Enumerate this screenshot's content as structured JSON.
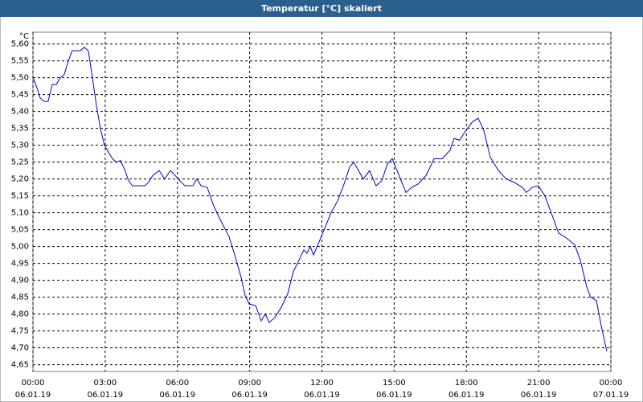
{
  "chart_data": {
    "type": "line",
    "title": "Temperatur [°C] skaliert",
    "y_label": "°C",
    "x": [
      0,
      0.17,
      0.3,
      0.47,
      0.63,
      0.8,
      0.97,
      1.13,
      1.3,
      1.47,
      1.63,
      1.97,
      2.13,
      2.3,
      2.47,
      2.63,
      2.8,
      2.97,
      3.13,
      3.3,
      3.47,
      3.63,
      3.8,
      3.97,
      4.13,
      4.64,
      4.8,
      4.97,
      5.24,
      5.47,
      5.71,
      5.91,
      6.04,
      6.31,
      6.64,
      6.81,
      6.98,
      7.24,
      7.48,
      7.81,
      8.14,
      8.38,
      8.64,
      8.81,
      8.98,
      9.25,
      9.48,
      9.65,
      9.81,
      10.05,
      10.31,
      10.58,
      10.81,
      11.05,
      11.25,
      11.38,
      11.52,
      11.65,
      11.92,
      12.15,
      12.38,
      12.65,
      12.92,
      13.15,
      13.32,
      13.48,
      13.72,
      13.98,
      14.25,
      14.49,
      14.72,
      14.92,
      15.15,
      15.49,
      15.72,
      15.99,
      16.32,
      16.66,
      16.99,
      17.32,
      17.49,
      17.72,
      17.99,
      18.26,
      18.49,
      18.72,
      18.99,
      19.33,
      19.66,
      19.99,
      20.33,
      20.49,
      20.73,
      20.99,
      21.26,
      21.6,
      21.83,
      22.16,
      22.5,
      22.73,
      23.0,
      23.16,
      23.4,
      23.6,
      23.83
    ],
    "values": [
      5.5,
      5.47,
      5.44,
      5.43,
      5.43,
      5.48,
      5.48,
      5.5,
      5.51,
      5.55,
      5.58,
      5.58,
      5.59,
      5.58,
      5.5,
      5.42,
      5.35,
      5.3,
      5.28,
      5.26,
      5.25,
      5.255,
      5.23,
      5.195,
      5.18,
      5.18,
      5.19,
      5.21,
      5.225,
      5.2,
      5.225,
      5.21,
      5.2,
      5.18,
      5.18,
      5.2,
      5.18,
      5.175,
      5.125,
      5.075,
      5.03,
      4.975,
      4.91,
      4.855,
      4.83,
      4.825,
      4.78,
      4.8,
      4.775,
      4.79,
      4.82,
      4.86,
      4.925,
      4.96,
      4.99,
      4.98,
      5.0,
      4.975,
      5.02,
      5.06,
      5.1,
      5.135,
      5.185,
      5.235,
      5.25,
      5.23,
      5.2,
      5.225,
      5.18,
      5.195,
      5.245,
      5.26,
      5.22,
      5.16,
      5.175,
      5.185,
      5.21,
      5.26,
      5.26,
      5.285,
      5.32,
      5.315,
      5.345,
      5.37,
      5.38,
      5.345,
      5.265,
      5.225,
      5.2,
      5.19,
      5.175,
      5.16,
      5.175,
      5.18,
      5.15,
      5.085,
      5.04,
      5.025,
      5.005,
      4.96,
      4.88,
      4.85,
      4.84,
      4.765,
      4.69
    ],
    "color": "#0000cc",
    "xlim": [
      0,
      24
    ],
    "xticks": [
      {
        "value": 0,
        "label": "00:00"
      },
      {
        "value": 3,
        "label": "03:00"
      },
      {
        "value": 6,
        "label": "06:00"
      },
      {
        "value": 9,
        "label": "09:00"
      },
      {
        "value": 12,
        "label": "12:00"
      },
      {
        "value": 15,
        "label": "15:00"
      },
      {
        "value": 18,
        "label": "18:00"
      },
      {
        "value": 21,
        "label": "21:00"
      },
      {
        "value": 24,
        "label": "00:00"
      }
    ],
    "xtick_dates": [
      "06.01.19",
      "06.01.19",
      "06.01.19",
      "06.01.19",
      "06.01.19",
      "06.01.19",
      "06.01.19",
      "06.01.19",
      "07.01.19"
    ],
    "ylim": [
      4.63,
      5.635
    ],
    "yticks": [
      {
        "value": 4.65,
        "label": "4,65"
      },
      {
        "value": 4.7,
        "label": "4,70"
      },
      {
        "value": 4.75,
        "label": "4,75"
      },
      {
        "value": 4.8,
        "label": "4,80"
      },
      {
        "value": 4.85,
        "label": "4,85"
      },
      {
        "value": 4.9,
        "label": "4,90"
      },
      {
        "value": 4.95,
        "label": "4,95"
      },
      {
        "value": 5.0,
        "label": "5,00"
      },
      {
        "value": 5.05,
        "label": "5,05"
      },
      {
        "value": 5.1,
        "label": "5,10"
      },
      {
        "value": 5.15,
        "label": "5,15"
      },
      {
        "value": 5.2,
        "label": "5,20"
      },
      {
        "value": 5.25,
        "label": "5,25"
      },
      {
        "value": 5.3,
        "label": "5,30"
      },
      {
        "value": 5.35,
        "label": "5,35"
      },
      {
        "value": 5.4,
        "label": "5,40"
      },
      {
        "value": 5.45,
        "label": "5,45"
      },
      {
        "value": 5.5,
        "label": "5,50"
      },
      {
        "value": 5.55,
        "label": "5,55"
      },
      {
        "value": 5.6,
        "label": "5,60"
      }
    ],
    "grid": true
  }
}
